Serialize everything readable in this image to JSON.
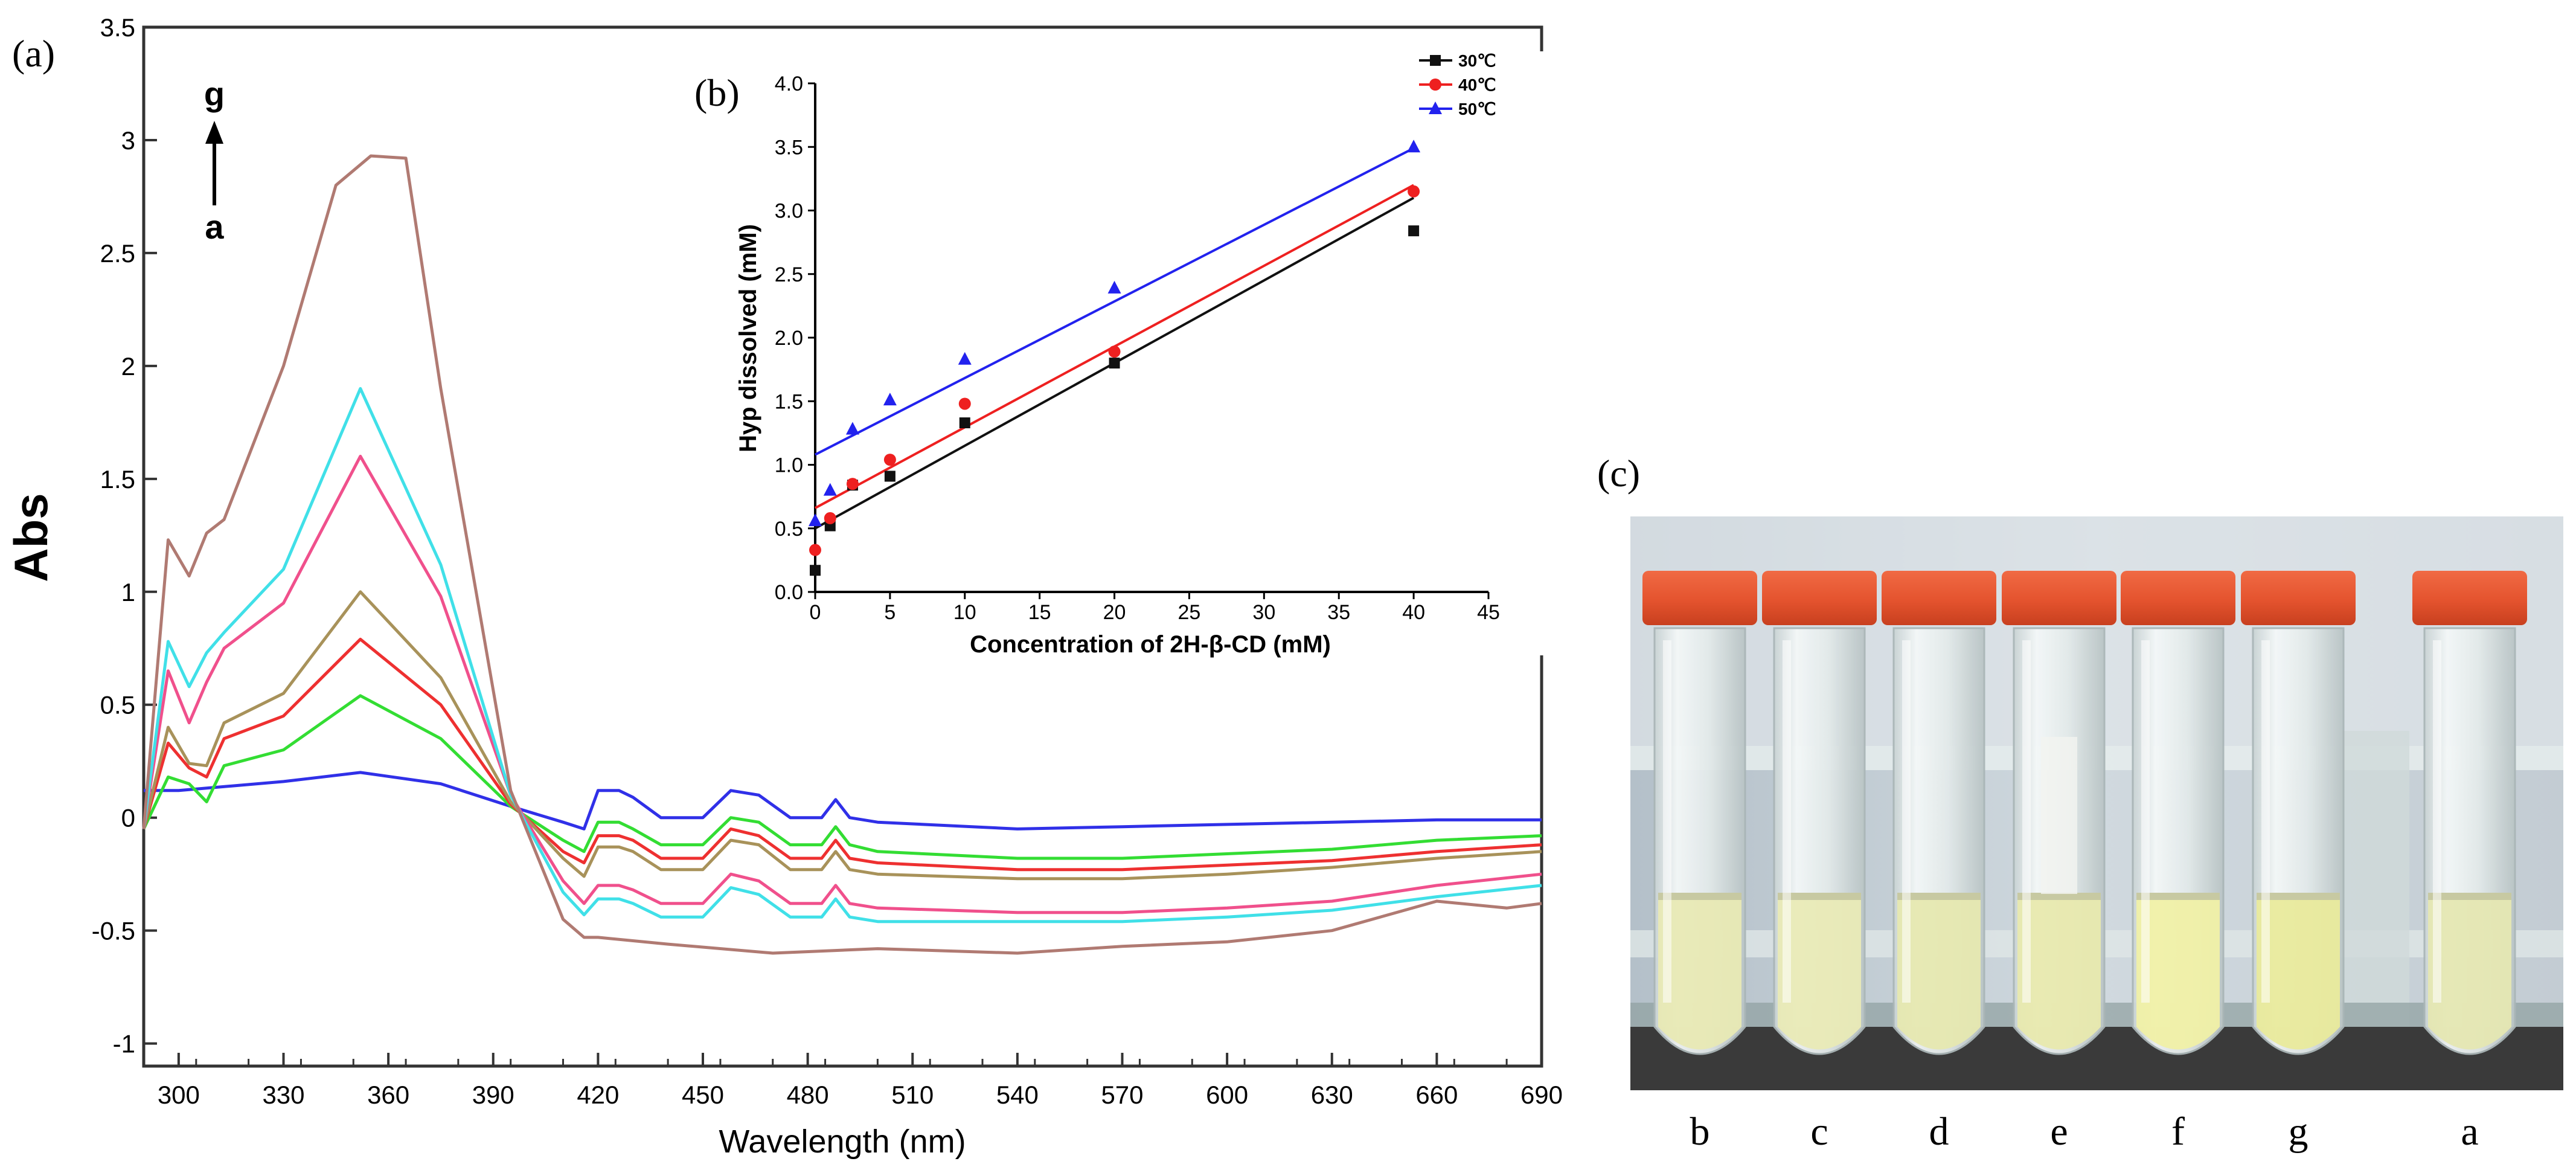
{
  "chart_data": [
    {
      "panel": "(a)",
      "type": "line",
      "xlabel": "Wavelength (nm)",
      "ylabel": "Abs",
      "xlim": [
        290,
        690
      ],
      "ylim": [
        -1.1,
        3.5
      ],
      "xticks": [
        300,
        330,
        360,
        390,
        420,
        450,
        480,
        510,
        540,
        570,
        600,
        630,
        660,
        690
      ],
      "yticks": [
        -1,
        -0.5,
        0,
        0.5,
        1,
        1.5,
        2,
        2.5,
        3,
        3.5
      ],
      "annotation": {
        "top": "g",
        "bottom": "a"
      },
      "series": [
        {
          "name": "a",
          "color": "#3030e8",
          "x": [
            290,
            300,
            330,
            352,
            375,
            395,
            410,
            416,
            420,
            426,
            430,
            438,
            450,
            458,
            466,
            475,
            484,
            488,
            492,
            500,
            540,
            570,
            600,
            630,
            660,
            690
          ],
          "y": [
            0.12,
            0.12,
            0.16,
            0.2,
            0.15,
            0.05,
            -0.02,
            -0.05,
            0.12,
            0.12,
            0.09,
            0.0,
            0.0,
            0.12,
            0.1,
            0.0,
            0.0,
            0.08,
            0.0,
            -0.02,
            -0.05,
            -0.04,
            -0.03,
            -0.02,
            -0.01,
            -0.01
          ]
        },
        {
          "name": "b",
          "color": "#33dd33",
          "x": [
            290,
            297,
            303,
            308,
            313,
            330,
            352,
            375,
            395,
            410,
            416,
            420,
            426,
            430,
            438,
            450,
            458,
            466,
            475,
            484,
            488,
            492,
            500,
            540,
            570,
            600,
            630,
            660,
            690
          ],
          "y": [
            -0.05,
            0.18,
            0.15,
            0.07,
            0.23,
            0.3,
            0.54,
            0.35,
            0.05,
            -0.1,
            -0.15,
            -0.02,
            -0.02,
            -0.05,
            -0.12,
            -0.12,
            0.0,
            -0.02,
            -0.12,
            -0.12,
            -0.04,
            -0.12,
            -0.15,
            -0.18,
            -0.18,
            -0.16,
            -0.14,
            -0.1,
            -0.08
          ]
        },
        {
          "name": "c",
          "color": "#ee3030",
          "x": [
            290,
            297,
            303,
            308,
            313,
            330,
            352,
            375,
            395,
            410,
            416,
            420,
            426,
            430,
            438,
            450,
            458,
            466,
            475,
            484,
            488,
            492,
            500,
            540,
            570,
            600,
            630,
            660,
            690
          ],
          "y": [
            -0.05,
            0.33,
            0.22,
            0.18,
            0.35,
            0.45,
            0.79,
            0.5,
            0.06,
            -0.15,
            -0.2,
            -0.08,
            -0.08,
            -0.1,
            -0.18,
            -0.18,
            -0.05,
            -0.08,
            -0.18,
            -0.18,
            -0.1,
            -0.18,
            -0.2,
            -0.23,
            -0.23,
            -0.21,
            -0.19,
            -0.15,
            -0.12
          ]
        },
        {
          "name": "d",
          "color": "#a8925a",
          "x": [
            290,
            297,
            303,
            308,
            313,
            330,
            352,
            375,
            395,
            410,
            416,
            420,
            426,
            430,
            438,
            450,
            458,
            466,
            475,
            484,
            488,
            492,
            500,
            540,
            570,
            600,
            630,
            660,
            690
          ],
          "y": [
            -0.05,
            0.4,
            0.24,
            0.23,
            0.42,
            0.55,
            1.0,
            0.62,
            0.07,
            -0.18,
            -0.26,
            -0.13,
            -0.13,
            -0.15,
            -0.23,
            -0.23,
            -0.1,
            -0.12,
            -0.23,
            -0.23,
            -0.15,
            -0.23,
            -0.25,
            -0.27,
            -0.27,
            -0.25,
            -0.22,
            -0.18,
            -0.15
          ]
        },
        {
          "name": "e",
          "color": "#f0508c",
          "x": [
            290,
            297,
            303,
            308,
            313,
            330,
            352,
            375,
            395,
            410,
            416,
            420,
            426,
            430,
            438,
            450,
            458,
            466,
            475,
            484,
            488,
            492,
            500,
            540,
            570,
            600,
            630,
            660,
            690
          ],
          "y": [
            -0.05,
            0.65,
            0.42,
            0.6,
            0.75,
            0.95,
            1.6,
            0.98,
            0.1,
            -0.28,
            -0.38,
            -0.3,
            -0.3,
            -0.32,
            -0.38,
            -0.38,
            -0.25,
            -0.28,
            -0.38,
            -0.38,
            -0.3,
            -0.38,
            -0.4,
            -0.42,
            -0.42,
            -0.4,
            -0.37,
            -0.3,
            -0.25
          ]
        },
        {
          "name": "f",
          "color": "#40e0e8",
          "x": [
            290,
            297,
            303,
            308,
            313,
            330,
            352,
            375,
            395,
            410,
            416,
            420,
            426,
            430,
            438,
            450,
            458,
            466,
            475,
            484,
            488,
            492,
            500,
            540,
            570,
            600,
            630,
            660,
            690
          ],
          "y": [
            -0.05,
            0.78,
            0.58,
            0.73,
            0.82,
            1.1,
            1.9,
            1.12,
            0.1,
            -0.33,
            -0.43,
            -0.36,
            -0.36,
            -0.38,
            -0.44,
            -0.44,
            -0.31,
            -0.34,
            -0.44,
            -0.44,
            -0.36,
            -0.44,
            -0.46,
            -0.46,
            -0.46,
            -0.44,
            -0.41,
            -0.35,
            -0.3
          ]
        },
        {
          "name": "g",
          "color": "#b07a72",
          "x": [
            290,
            297,
            303,
            308,
            313,
            330,
            345,
            355,
            365,
            375,
            395,
            410,
            416,
            420,
            440,
            470,
            500,
            540,
            570,
            600,
            630,
            660,
            680,
            690
          ],
          "y": [
            -0.05,
            1.23,
            1.07,
            1.26,
            1.32,
            2.0,
            2.8,
            2.93,
            2.92,
            1.9,
            0.12,
            -0.45,
            -0.53,
            -0.53,
            -0.56,
            -0.6,
            -0.58,
            -0.6,
            -0.57,
            -0.55,
            -0.5,
            -0.37,
            -0.4,
            -0.38
          ]
        }
      ]
    },
    {
      "panel": "(b)",
      "type": "scatter",
      "xlabel": "Concentration of 2H-β-CD (mM)",
      "ylabel": "Hyp dissolved (mM)",
      "xlim": [
        0,
        45
      ],
      "ylim": [
        0,
        4.0
      ],
      "xticks": [
        0,
        5,
        10,
        15,
        20,
        25,
        30,
        35,
        40,
        45
      ],
      "yticks": [
        "0.0",
        "0.5",
        "1.0",
        "1.5",
        "2.0",
        "2.5",
        "3.0",
        "3.5",
        "4.0"
      ],
      "legend_position": "top-right",
      "series": [
        {
          "name": "30℃",
          "color": "#111111",
          "marker": "square",
          "x": [
            0,
            1,
            2.5,
            5,
            10,
            20,
            40
          ],
          "y": [
            0.17,
            0.52,
            0.84,
            0.91,
            1.33,
            1.8,
            2.84
          ],
          "fit": [
            0.5,
            3.1
          ]
        },
        {
          "name": "40℃",
          "color": "#ee2020",
          "marker": "circle",
          "x": [
            0,
            1,
            2.5,
            5,
            10,
            20,
            40
          ],
          "y": [
            0.33,
            0.58,
            0.85,
            1.04,
            1.48,
            1.89,
            3.15
          ],
          "fit": [
            0.66,
            3.2
          ]
        },
        {
          "name": "50℃",
          "color": "#2222ee",
          "marker": "triangle",
          "x": [
            0,
            1,
            2.5,
            5,
            10,
            20,
            40
          ],
          "y": [
            0.56,
            0.8,
            1.28,
            1.51,
            1.83,
            2.39,
            3.5
          ],
          "fit": [
            1.08,
            3.49
          ]
        }
      ]
    }
  ],
  "panel_a": {
    "label": "(a)"
  },
  "panel_b": {
    "label": "(b)"
  },
  "panel_c": {
    "label": "(c)",
    "tube_labels": [
      "b",
      "c",
      "d",
      "e",
      "f",
      "g",
      "a"
    ]
  }
}
